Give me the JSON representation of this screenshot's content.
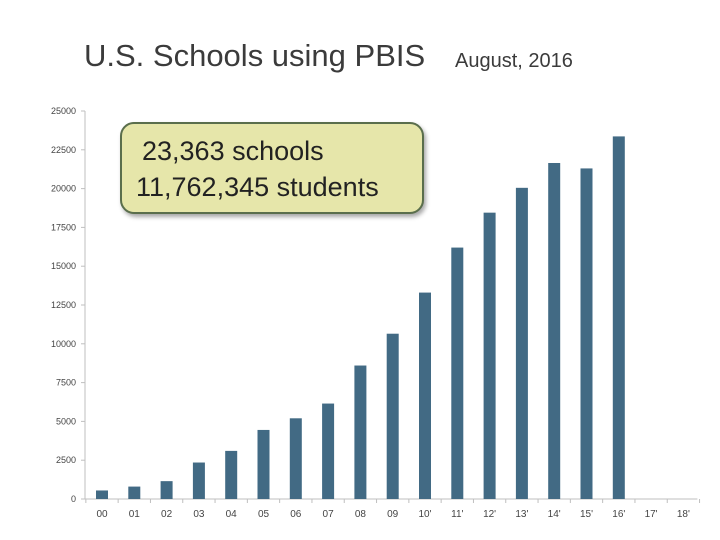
{
  "header": {
    "title": "U.S. Schools using PBIS",
    "date": "August, 2016"
  },
  "annotation": {
    "line1": "23,363 schools",
    "line2": "11,762,345 students"
  },
  "colors": {
    "bar": "#426a84",
    "axis": "#bfbfbf",
    "annotation_fill": "#e6e6aa",
    "annotation_border": "#5a6e4c"
  },
  "chart_data": {
    "type": "bar",
    "categories": [
      "00",
      "01",
      "02",
      "03",
      "04",
      "05",
      "06",
      "07",
      "08",
      "09",
      "10'",
      "11'",
      "12'",
      "13'",
      "14'",
      "15'",
      "16'",
      "17'",
      "18'"
    ],
    "values": [
      550,
      800,
      1150,
      2350,
      3100,
      4450,
      5200,
      6150,
      8600,
      10650,
      13300,
      16200,
      18450,
      20050,
      21650,
      21300,
      23363,
      null,
      null
    ],
    "title": "U.S. Schools using PBIS",
    "xlabel": "",
    "ylabel": "",
    "ylim": [
      0,
      25000
    ],
    "yticks": [
      0,
      2500,
      5000,
      7500,
      10000,
      12500,
      15000,
      17500,
      20000,
      22500,
      25000
    ],
    "grid": false,
    "legend": "none"
  }
}
